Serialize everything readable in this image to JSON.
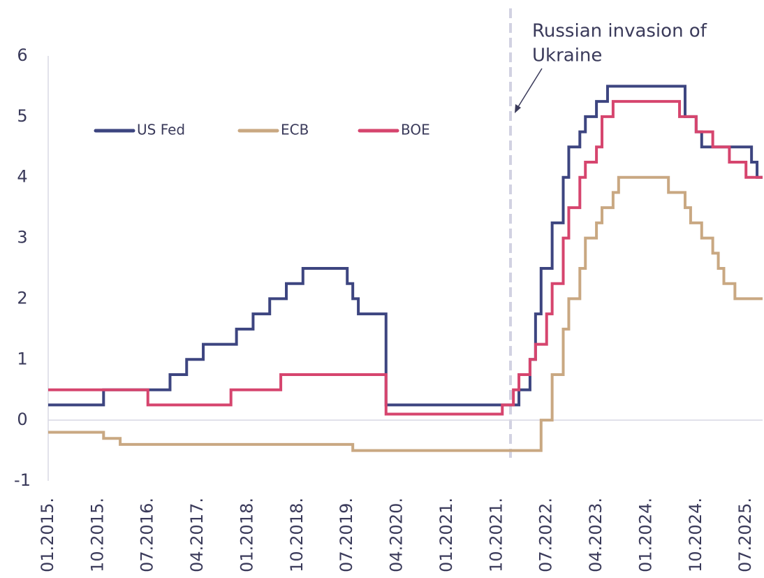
{
  "chart_data": {
    "type": "step",
    "annotation": [
      "Russian invasion of",
      "Ukraine"
    ],
    "categories": [
      "01.2015.",
      null,
      null,
      null,
      null,
      null,
      null,
      null,
      null,
      "10.2015.",
      null,
      null,
      null,
      null,
      null,
      null,
      null,
      null,
      "07.2016.",
      null,
      null,
      null,
      null,
      null,
      null,
      null,
      null,
      "04.2017.",
      null,
      null,
      null,
      null,
      null,
      null,
      null,
      null,
      "01.2018.",
      null,
      null,
      null,
      null,
      null,
      null,
      null,
      null,
      "10.2018.",
      null,
      null,
      null,
      null,
      null,
      null,
      null,
      null,
      "07.2019.",
      null,
      null,
      null,
      null,
      null,
      null,
      null,
      null,
      "04.2020.",
      null,
      null,
      null,
      null,
      null,
      null,
      null,
      null,
      "01.2021.",
      null,
      null,
      null,
      null,
      null,
      null,
      null,
      null,
      "10.2021.",
      null,
      null,
      null,
      null,
      null,
      null,
      null,
      null,
      "07.2022.",
      null,
      null,
      null,
      null,
      null,
      null,
      null,
      null,
      "04.2023.",
      null,
      null,
      null,
      null,
      null,
      null,
      null,
      null,
      "01.2024.",
      null,
      null,
      null,
      null,
      null,
      null,
      null,
      null,
      "10.2024.",
      null,
      null,
      null,
      null,
      null,
      null,
      null,
      null,
      "07.2025.",
      null,
      null,
      null
    ],
    "series": [
      {
        "name": "US Fed",
        "color": "#3d4580",
        "values": [
          0.25,
          0.25,
          0.25,
          0.25,
          0.25,
          0.25,
          0.25,
          0.25,
          0.25,
          0.25,
          0.25,
          0.5,
          0.5,
          0.5,
          0.5,
          0.5,
          0.5,
          0.5,
          0.5,
          0.5,
          0.5,
          0.5,
          0.5,
          0.75,
          0.75,
          0.75,
          1,
          1,
          1,
          1.25,
          1.25,
          1.25,
          1.25,
          1.25,
          1.25,
          1.5,
          1.5,
          1.5,
          1.75,
          1.75,
          1.75,
          2,
          2,
          2,
          2.25,
          2.25,
          2.25,
          2.5,
          2.5,
          2.5,
          2.5,
          2.5,
          2.5,
          2.5,
          2.5,
          2.25,
          2,
          1.75,
          1.75,
          1.75,
          1.75,
          1.75,
          0.25,
          0.25,
          0.25,
          0.25,
          0.25,
          0.25,
          0.25,
          0.25,
          0.25,
          0.25,
          0.25,
          0.25,
          0.25,
          0.25,
          0.25,
          0.25,
          0.25,
          0.25,
          0.25,
          0.25,
          0.25,
          0.25,
          0.25,
          0.25,
          0.5,
          0.5,
          1,
          1.75,
          2.5,
          2.5,
          3.25,
          3.25,
          4,
          4.5,
          4.5,
          4.75,
          5,
          5,
          5.25,
          5.25,
          5.5,
          5.5,
          5.5,
          5.5,
          5.5,
          5.5,
          5.5,
          5.5,
          5.5,
          5.5,
          5.5,
          5.5,
          5.5,
          5.5,
          5,
          5,
          4.75,
          4.5,
          4.5,
          4.5,
          4.5,
          4.5,
          4.5,
          4.5,
          4.5,
          4.5,
          4.25,
          4
        ]
      },
      {
        "name": "ECB",
        "color": "#c9a882",
        "values": [
          -0.2,
          -0.2,
          -0.2,
          -0.2,
          -0.2,
          -0.2,
          -0.2,
          -0.2,
          -0.2,
          -0.2,
          -0.2,
          -0.3,
          -0.3,
          -0.3,
          -0.4,
          -0.4,
          -0.4,
          -0.4,
          -0.4,
          -0.4,
          -0.4,
          -0.4,
          -0.4,
          -0.4,
          -0.4,
          -0.4,
          -0.4,
          -0.4,
          -0.4,
          -0.4,
          -0.4,
          -0.4,
          -0.4,
          -0.4,
          -0.4,
          -0.4,
          -0.4,
          -0.4,
          -0.4,
          -0.4,
          -0.4,
          -0.4,
          -0.4,
          -0.4,
          -0.4,
          -0.4,
          -0.4,
          -0.4,
          -0.4,
          -0.4,
          -0.4,
          -0.4,
          -0.4,
          -0.4,
          -0.4,
          -0.4,
          -0.5,
          -0.5,
          -0.5,
          -0.5,
          -0.5,
          -0.5,
          -0.5,
          -0.5,
          -0.5,
          -0.5,
          -0.5,
          -0.5,
          -0.5,
          -0.5,
          -0.5,
          -0.5,
          -0.5,
          -0.5,
          -0.5,
          -0.5,
          -0.5,
          -0.5,
          -0.5,
          -0.5,
          -0.5,
          -0.5,
          -0.5,
          -0.5,
          -0.5,
          -0.5,
          -0.5,
          -0.5,
          -0.5,
          -0.5,
          0,
          0,
          0.75,
          0.75,
          1.5,
          2,
          2,
          2.5,
          3,
          3,
          3.25,
          3.5,
          3.5,
          3.75,
          4,
          4,
          4,
          4,
          4,
          4,
          4,
          4,
          4,
          3.75,
          3.75,
          3.75,
          3.5,
          3.25,
          3.25,
          3,
          3,
          2.75,
          2.5,
          2.25,
          2.25,
          2,
          2,
          2,
          2,
          2
        ]
      },
      {
        "name": "BOE",
        "color": "#d6456e",
        "values": [
          0.5,
          0.5,
          0.5,
          0.5,
          0.5,
          0.5,
          0.5,
          0.5,
          0.5,
          0.5,
          0.5,
          0.5,
          0.5,
          0.5,
          0.5,
          0.5,
          0.5,
          0.5,
          0.5,
          0.25,
          0.25,
          0.25,
          0.25,
          0.25,
          0.25,
          0.25,
          0.25,
          0.25,
          0.25,
          0.25,
          0.25,
          0.25,
          0.25,
          0.25,
          0.5,
          0.5,
          0.5,
          0.5,
          0.5,
          0.5,
          0.5,
          0.5,
          0.5,
          0.75,
          0.75,
          0.75,
          0.75,
          0.75,
          0.75,
          0.75,
          0.75,
          0.75,
          0.75,
          0.75,
          0.75,
          0.75,
          0.75,
          0.75,
          0.75,
          0.75,
          0.75,
          0.75,
          0.1,
          0.1,
          0.1,
          0.1,
          0.1,
          0.1,
          0.1,
          0.1,
          0.1,
          0.1,
          0.1,
          0.1,
          0.1,
          0.1,
          0.1,
          0.1,
          0.1,
          0.1,
          0.1,
          0.1,
          0.1,
          0.25,
          0.25,
          0.5,
          0.75,
          0.75,
          1,
          1.25,
          1.25,
          1.75,
          2.25,
          2.25,
          3,
          3.5,
          3.5,
          4,
          4.25,
          4.25,
          4.5,
          5,
          5,
          5.25,
          5.25,
          5.25,
          5.25,
          5.25,
          5.25,
          5.25,
          5.25,
          5.25,
          5.25,
          5.25,
          5.25,
          5,
          5,
          5,
          4.75,
          4.75,
          4.75,
          4.5,
          4.5,
          4.5,
          4.25,
          4.25,
          4.25,
          4,
          4,
          4
        ]
      }
    ],
    "ylim": [
      -1,
      6
    ],
    "yticks": [
      -1,
      0,
      1,
      2,
      3,
      4,
      5,
      6
    ],
    "grid": false
  }
}
